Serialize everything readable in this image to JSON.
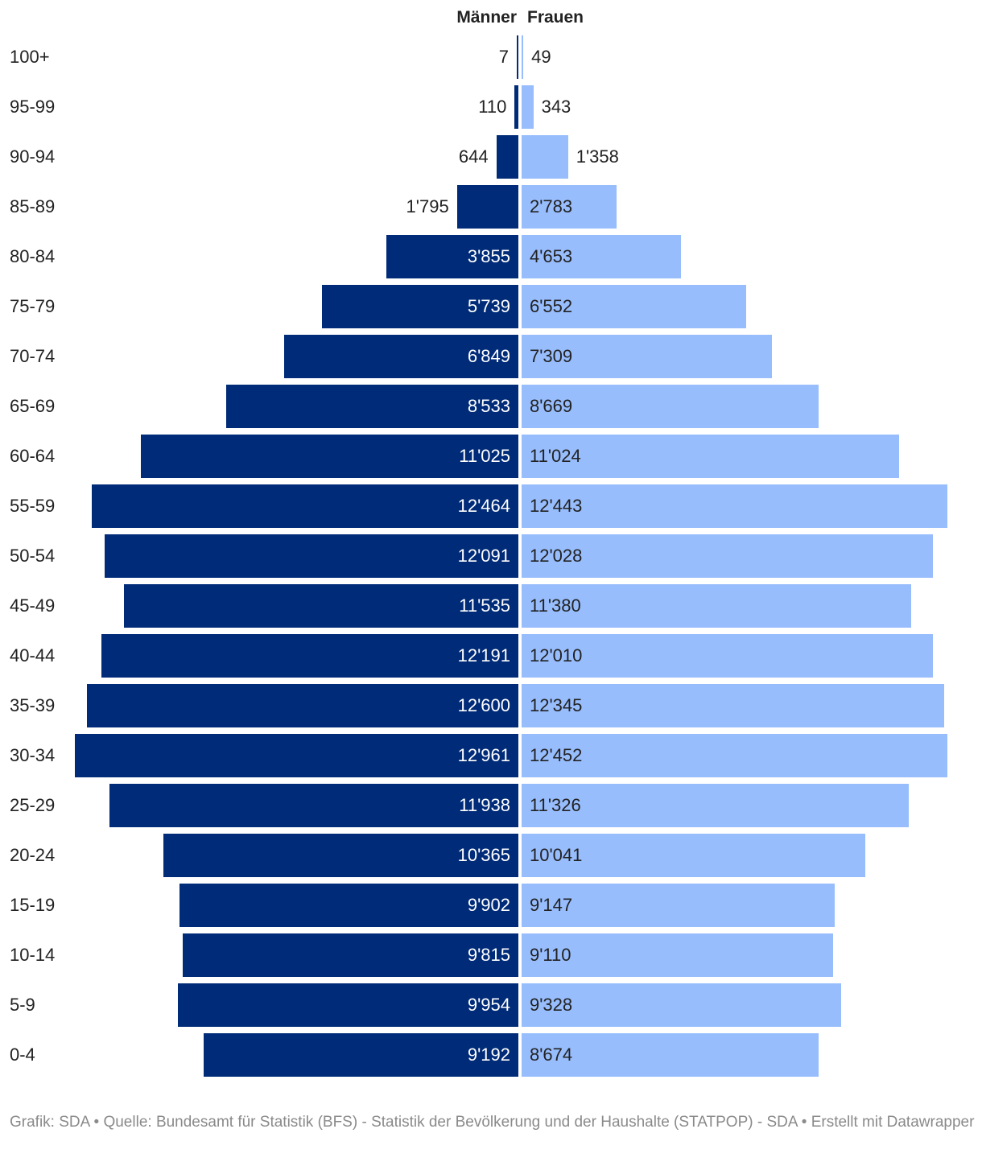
{
  "headers": {
    "men": "Männer",
    "women": "Frauen"
  },
  "colors": {
    "men": "#002b78",
    "women": "#97bdfd",
    "label_on_men": "#ffffff",
    "label_outside": "#222222"
  },
  "footer": "Grafik: SDA • Quelle:  Bundesamt für Statistik (BFS) - Statistik der Bevölkerung und der Haushalte (STATPOP) - SDA • Erstellt mit Datawrapper",
  "chart_data": {
    "type": "bar",
    "orientation": "horizontal-diverging",
    "categories": [
      "100+",
      "95-99",
      "90-94",
      "85-89",
      "80-84",
      "75-79",
      "70-74",
      "65-69",
      "60-64",
      "55-59",
      "50-54",
      "45-49",
      "40-44",
      "35-39",
      "30-34",
      "25-29",
      "20-24",
      "15-19",
      "10-14",
      "5-9",
      "0-4"
    ],
    "series": [
      {
        "name": "Männer",
        "values": [
          7,
          110,
          644,
          1795,
          3855,
          5739,
          6849,
          8533,
          11025,
          12464,
          12091,
          11535,
          12191,
          12600,
          12961,
          11938,
          10365,
          9902,
          9815,
          9954,
          9192
        ],
        "labels": [
          "7",
          "110",
          "644",
          "1'795",
          "3'855",
          "5'739",
          "6'849",
          "8'533",
          "11'025",
          "12'464",
          "12'091",
          "11'535",
          "12'191",
          "12'600",
          "12'961",
          "11'938",
          "10'365",
          "9'902",
          "9'815",
          "9'954",
          "9'192"
        ]
      },
      {
        "name": "Frauen",
        "values": [
          49,
          343,
          1358,
          2783,
          4653,
          6552,
          7309,
          8669,
          11024,
          12443,
          12028,
          11380,
          12010,
          12345,
          12452,
          11326,
          10041,
          9147,
          9110,
          9328,
          8674
        ],
        "labels": [
          "49",
          "343",
          "1'358",
          "2'783",
          "4'653",
          "6'552",
          "7'309",
          "8'669",
          "11'024",
          "12'443",
          "12'028",
          "11'380",
          "12'010",
          "12'345",
          "12'452",
          "11'326",
          "10'041",
          "9'147",
          "9'110",
          "9'328",
          "8'674"
        ]
      }
    ],
    "grid": false,
    "legend": "top-center"
  }
}
